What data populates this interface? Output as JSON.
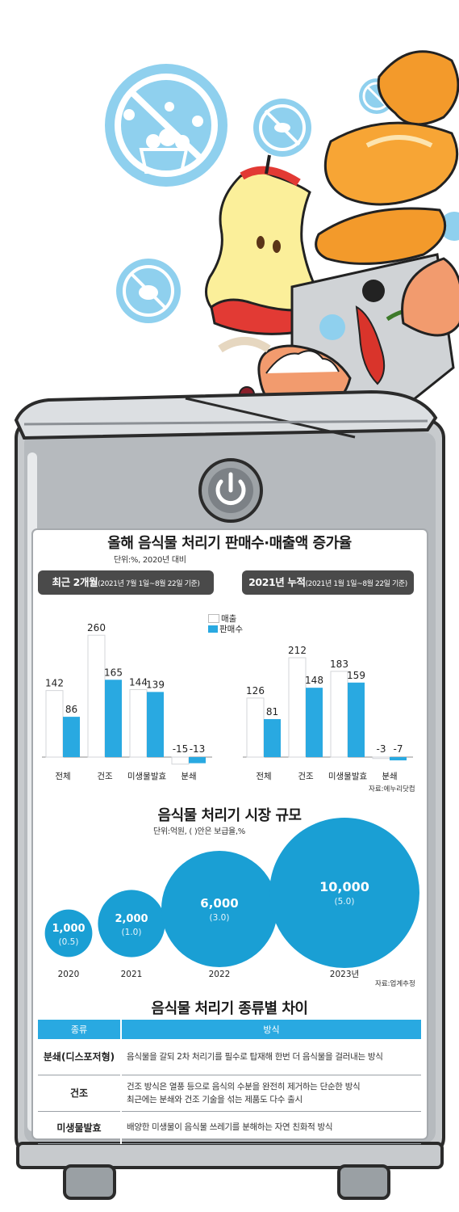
{
  "title": "올해 음식물 처리기 판매수·매출액 증가율",
  "unit_note": "단위:%, 2020년 대비",
  "legend": [
    {
      "label": "매출",
      "color": "#ffffff"
    },
    {
      "label": "판매수",
      "color": "#29a9e1"
    }
  ],
  "period_left": {
    "main": "최근 2개월",
    "sub": "(2021년 7월 1일~8월 22일 기준)"
  },
  "period_right": {
    "main": "2021년 누적",
    "sub": "(2021년 1월 1일~8월 22일 기준)"
  },
  "source1": "자료:에누리닷컴",
  "chart_data": [
    {
      "type": "bar",
      "categories": [
        "전체",
        "건조",
        "미생물발효",
        "분쇄"
      ],
      "series": [
        {
          "name": "매출",
          "values": [
            142,
            260,
            144,
            -15
          ]
        },
        {
          "name": "판매수",
          "values": [
            86,
            165,
            139,
            -13
          ]
        }
      ]
    },
    {
      "type": "bar",
      "categories": [
        "전체",
        "건조",
        "미생물발효",
        "분쇄"
      ],
      "series": [
        {
          "name": "매출",
          "values": [
            126,
            212,
            183,
            -3
          ]
        },
        {
          "name": "판매수",
          "values": [
            81,
            148,
            159,
            -7
          ]
        }
      ]
    },
    {
      "type": "bubble",
      "title": "음식물 처리기 시장 규모",
      "subtitle": "단위:억원, ( )안은 보급율,%",
      "categories": [
        "2020",
        "2021",
        "2022",
        "2023년"
      ],
      "values": [
        1000,
        2000,
        6000,
        10000
      ],
      "value_labels": [
        "1,000",
        "2,000",
        "6,000",
        "10,000"
      ],
      "rates": [
        "(0.5)",
        "(1.0)",
        "(3.0)",
        "(5.0)"
      ],
      "color": "#1a9fd4"
    }
  ],
  "market": {
    "title": "음식물 처리기 시장 규모",
    "unit_note": "단위:억원, ( )안은 보급율,%",
    "source": "자료:업계추정"
  },
  "types_table": {
    "title": "음식물 처리기 종류별 차이",
    "headers": [
      "종류",
      "방식"
    ],
    "rows": [
      {
        "name": "분쇄(디스포저형)",
        "desc": [
          "음식물을 갈되 2차 처리기를 필수로 탑재해 한번 더 음식물을 걸러내는 방식"
        ]
      },
      {
        "name": "건조",
        "desc": [
          "건조 방식은 열풍 등으로 음식의 수분을 완전히 제거하는 단순한 방식",
          "최근에는 분쇄와 건조 기술을 섞는 제품도 다수 출시"
        ]
      },
      {
        "name": "미생물발효",
        "desc": [
          "배양한 미생물이 음식물 쓰레기를 분해하는 자연 친화적 방식"
        ]
      }
    ]
  }
}
